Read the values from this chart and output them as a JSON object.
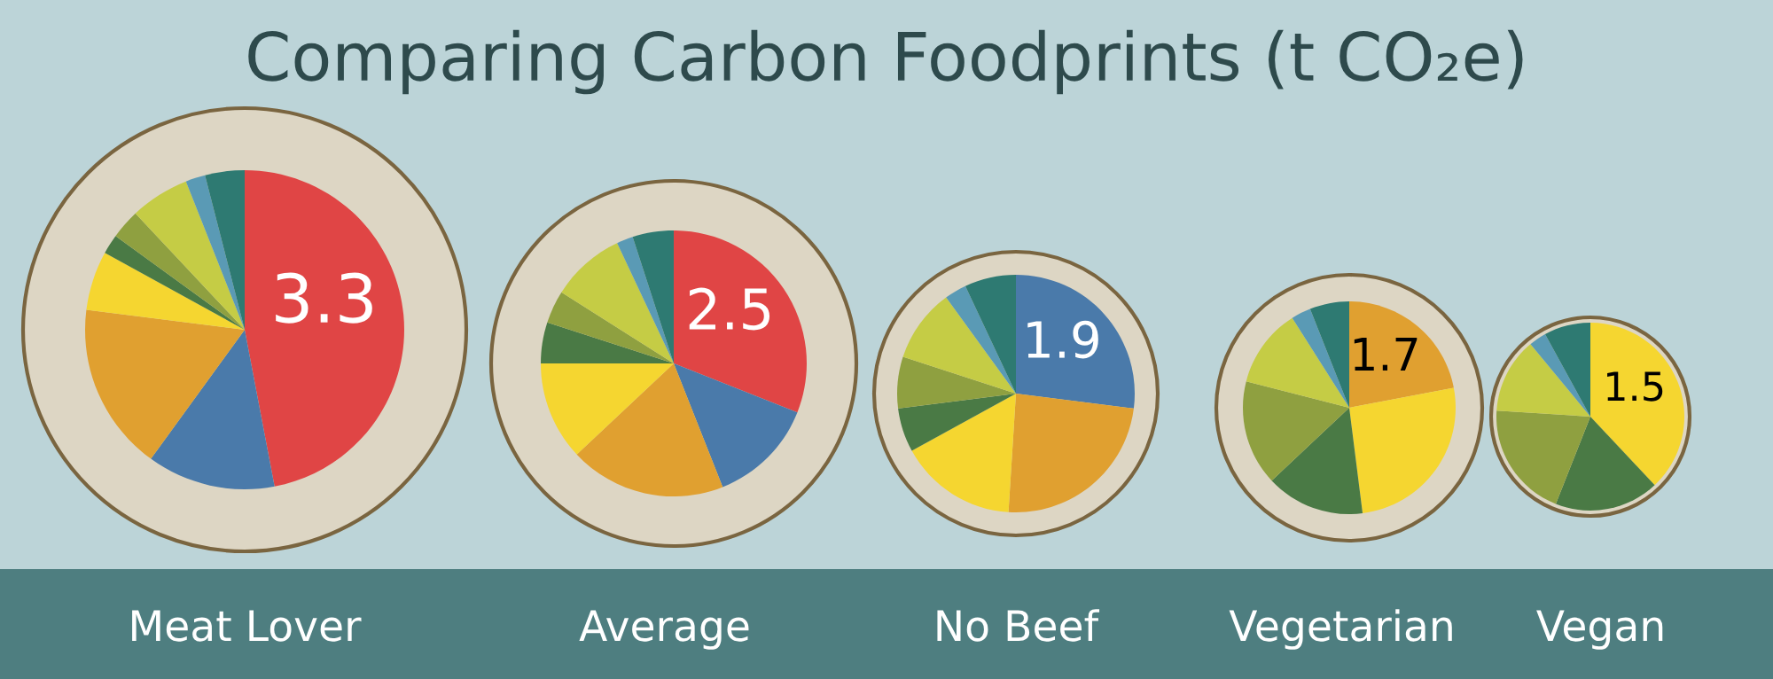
{
  "chart_data": [
    {
      "type": "other",
      "title": "Comparing Carbon Foodprints (t CO₂e)"
    },
    {
      "type": "pie",
      "title": "Meat Lover",
      "annotations": [
        "3.3"
      ],
      "categories": [
        null,
        null,
        null,
        null,
        null,
        null,
        null,
        null,
        null
      ],
      "values": [
        47,
        13,
        17,
        6,
        2,
        3,
        6,
        2,
        4
      ],
      "colors": [
        "#e04545",
        "#4a7aaa",
        "#e0a030",
        "#f5d630",
        "#4a7a45",
        "#8fa040",
        "#c5cc45",
        "#5a9ab5",
        "#2e7a72"
      ]
    },
    {
      "type": "pie",
      "title": "Average",
      "annotations": [
        "2.5"
      ],
      "categories": [
        null,
        null,
        null,
        null,
        null,
        null,
        null,
        null,
        null
      ],
      "values": [
        31,
        13,
        19,
        12,
        5,
        4,
        9,
        2,
        5
      ],
      "colors": [
        "#e04545",
        "#4a7aaa",
        "#e0a030",
        "#f5d630",
        "#4a7a45",
        "#8fa040",
        "#c5cc45",
        "#5a9ab5",
        "#2e7a72"
      ]
    },
    {
      "type": "pie",
      "title": "No Beef",
      "annotations": [
        "1.9"
      ],
      "categories": [
        null,
        null,
        null,
        null,
        null,
        null,
        null,
        null
      ],
      "values": [
        27,
        24,
        16,
        6,
        7,
        10,
        3,
        7
      ],
      "colors": [
        "#4a7aaa",
        "#e0a030",
        "#f5d630",
        "#4a7a45",
        "#8fa040",
        "#c5cc45",
        "#5a9ab5",
        "#2e7a72"
      ]
    },
    {
      "type": "pie",
      "title": "Vegetarian",
      "annotations": [
        "1.7"
      ],
      "categories": [
        null,
        null,
        null,
        null,
        null,
        null,
        null
      ],
      "values": [
        22,
        26,
        15,
        16,
        12,
        3,
        6
      ],
      "colors": [
        "#e0a030",
        "#f5d630",
        "#4a7a45",
        "#8fa040",
        "#c5cc45",
        "#5a9ab5",
        "#2e7a72"
      ]
    },
    {
      "type": "pie",
      "title": "Vegan",
      "annotations": [
        "1.5"
      ],
      "categories": [
        null,
        null,
        null,
        null,
        null,
        null
      ],
      "values": [
        38,
        18,
        20,
        13,
        3,
        8
      ],
      "colors": [
        "#f5d630",
        "#4a7a45",
        "#8fa040",
        "#c5cc45",
        "#5a9ab5",
        "#2e7a72"
      ]
    }
  ]
}
